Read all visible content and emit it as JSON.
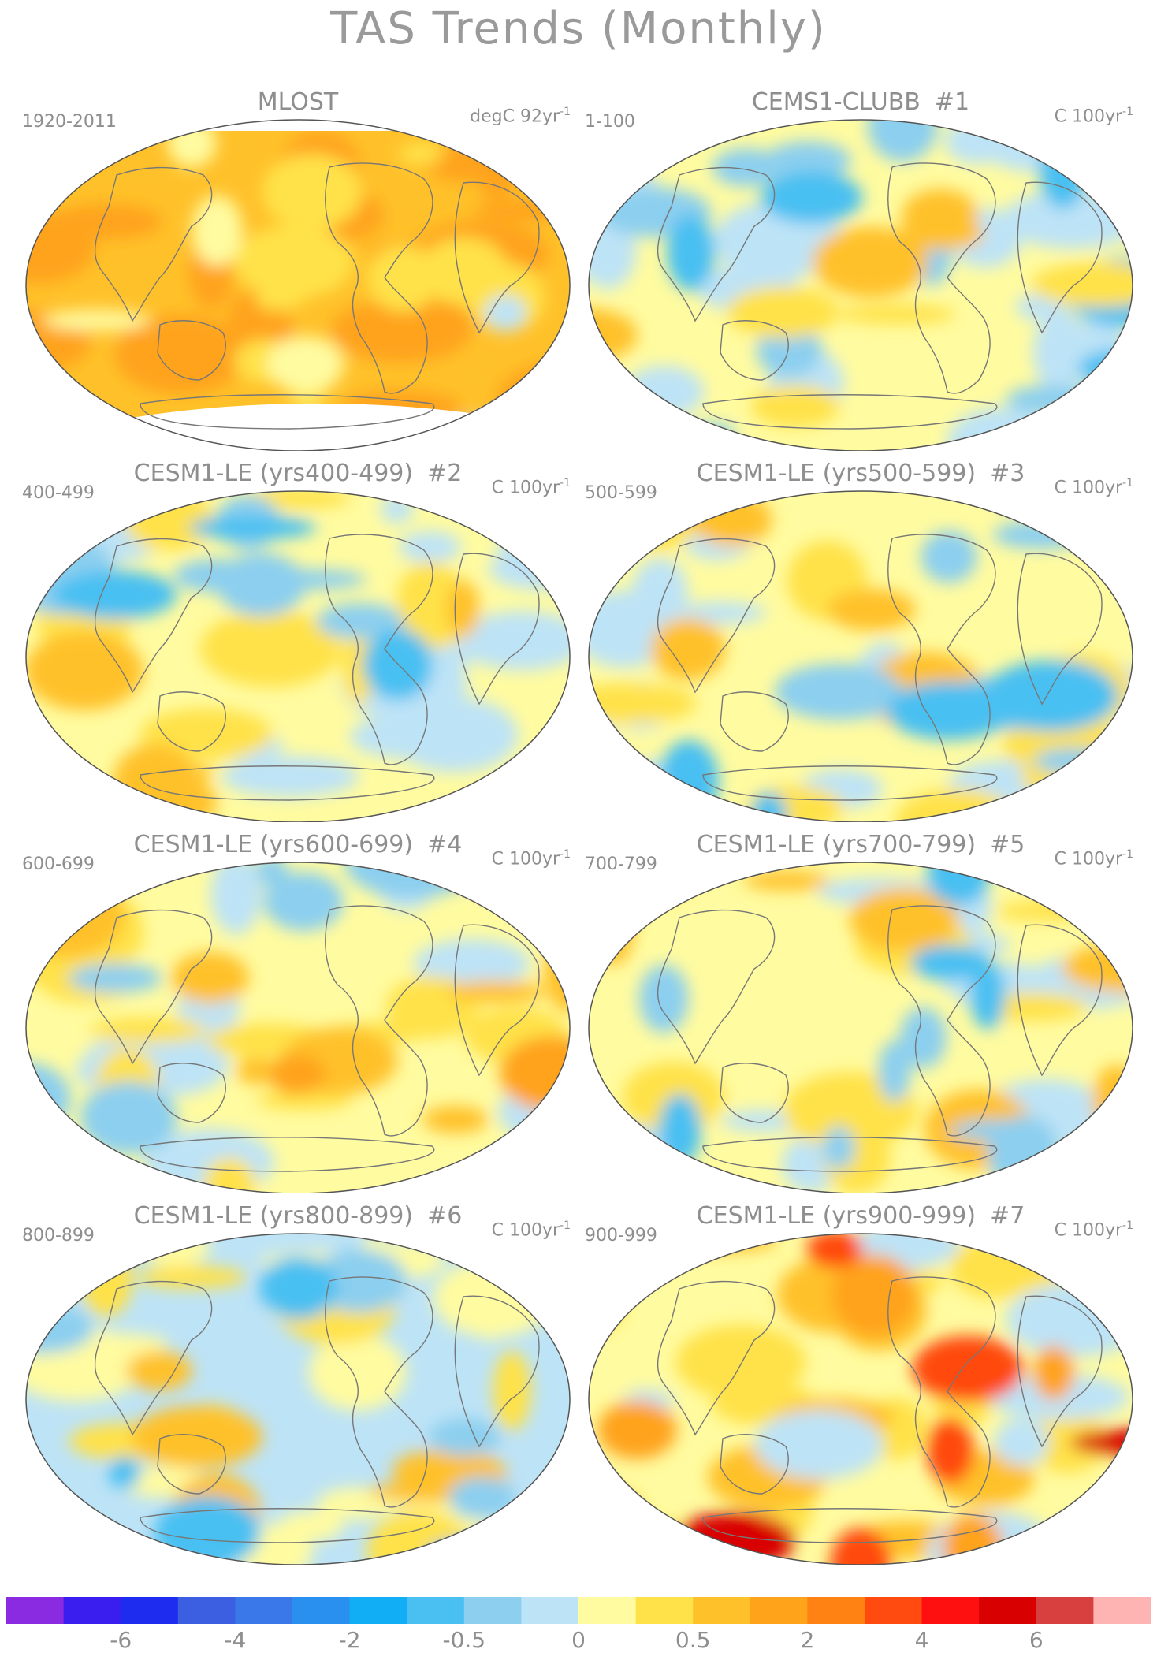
{
  "title": "TAS Trends (Monthly)",
  "panels": [
    {
      "title": "MLOST",
      "number": "",
      "left_label": "1920-2011",
      "right_label": "degC 92yr",
      "exponent": "-1",
      "variant": "obs"
    },
    {
      "title": "CEMS1-CLUBB",
      "number": "#1",
      "left_label": "1-100",
      "right_label": "C 100yr",
      "exponent": "-1",
      "variant": "cool"
    },
    {
      "title": "CESM1-LE (yrs400-499)",
      "number": "#2",
      "left_label": "400-499",
      "right_label": "C 100yr",
      "exponent": "-1",
      "variant": "mixed1"
    },
    {
      "title": "CESM1-LE (yrs500-599)",
      "number": "#3",
      "left_label": "500-599",
      "right_label": "C 100yr",
      "exponent": "-1",
      "variant": "mixed2"
    },
    {
      "title": "CESM1-LE (yrs600-699)",
      "number": "#4",
      "left_label": "600-699",
      "right_label": "C 100yr",
      "exponent": "-1",
      "variant": "mixed3"
    },
    {
      "title": "CESM1-LE (yrs700-799)",
      "number": "#5",
      "left_label": "700-799",
      "right_label": "C 100yr",
      "exponent": "-1",
      "variant": "mixed4"
    },
    {
      "title": "CESM1-LE (yrs800-899)",
      "number": "#6",
      "left_label": "800-899",
      "right_label": "C 100yr",
      "exponent": "-1",
      "variant": "mixed5"
    },
    {
      "title": "CESM1-LE (yrs900-999)",
      "number": "#7",
      "left_label": "900-999",
      "right_label": "C 100yr",
      "exponent": "-1",
      "variant": "warm"
    }
  ],
  "colorbar": {
    "colors": [
      "#8a2be2",
      "#3a1ef0",
      "#1e2cf0",
      "#3c5ee0",
      "#3a78ea",
      "#2a90f0",
      "#12aef5",
      "#4ac0f2",
      "#8ccfef",
      "#bde3f6",
      "#fffba0",
      "#ffe24a",
      "#ffc12a",
      "#ffa31a",
      "#ff8212",
      "#ff4a10",
      "#ff1010",
      "#d80000",
      "#d84040",
      "#ffb4b4"
    ],
    "labels": [
      {
        "text": "-6",
        "index": 2
      },
      {
        "text": "-4",
        "index": 4
      },
      {
        "text": "-2",
        "index": 6
      },
      {
        "text": "-0.5",
        "index": 8
      },
      {
        "text": "0",
        "index": 10
      },
      {
        "text": "0.5",
        "index": 12
      },
      {
        "text": "2",
        "index": 14
      },
      {
        "text": "4",
        "index": 16
      },
      {
        "text": "6",
        "index": 18
      }
    ]
  }
}
